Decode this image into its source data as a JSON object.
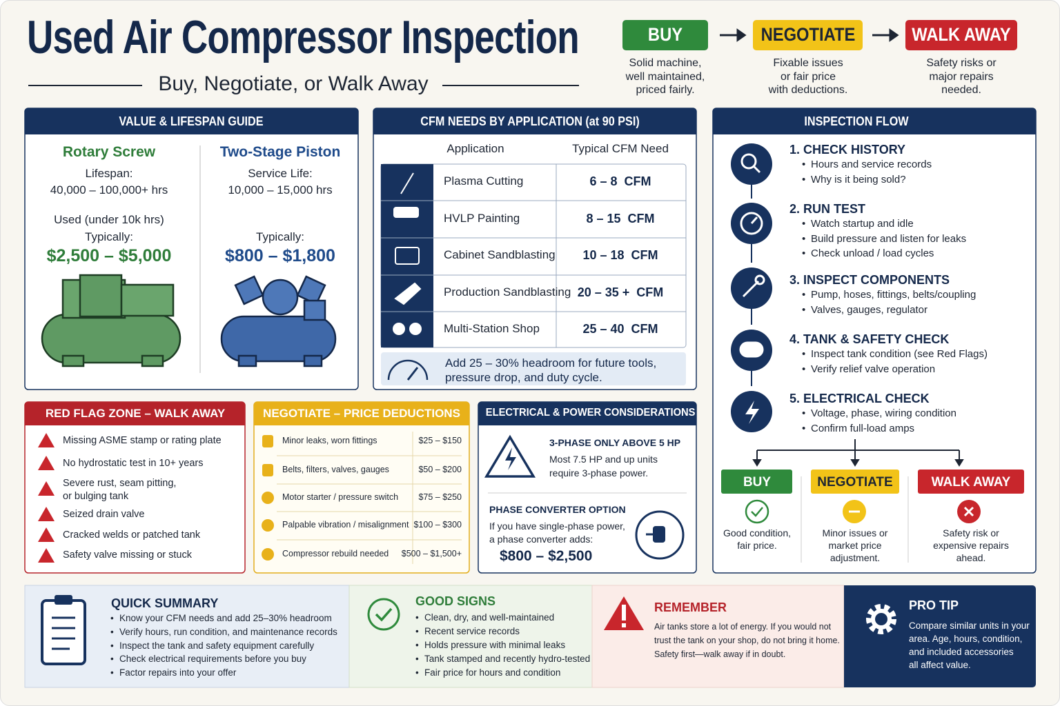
{
  "header": {
    "title": "Used Air Compressor Inspection",
    "subtitle": "Buy, Negotiate, or Walk Away"
  },
  "verdicts": [
    {
      "label": "BUY",
      "lines": [
        "Solid machine,",
        "well maintained,",
        "priced fairly."
      ]
    },
    {
      "label": "NEGOTIATE",
      "lines": [
        "Fixable issues",
        "or fair price",
        "with deductions."
      ]
    },
    {
      "label": "WALK AWAY",
      "lines": [
        "Safety risks or",
        "major repairs",
        "needed."
      ]
    }
  ],
  "value_guide": {
    "title": "VALUE & LIFESPAN GUIDE",
    "columns": [
      {
        "name": "Rotary Screw",
        "life_label": "Lifespan:",
        "life_value": "40,000 – 100,000+ hrs",
        "used": "Used (under 10k hrs)",
        "typical_label": "Typically:",
        "price": "$2,500 – $5,000"
      },
      {
        "name": "Two-Stage Piston",
        "life_label": "Service Life:",
        "life_value": "10,000 – 15,000 hrs",
        "typical_label": "Typically:",
        "price": "$800 – $1,800"
      }
    ]
  },
  "cfm": {
    "title": "CFM NEEDS BY APPLICATION (at 90 PSI)",
    "headers": [
      "Application",
      "Typical CFM Need"
    ],
    "rows": [
      [
        "Plasma Cutting",
        "6 – 8  CFM"
      ],
      [
        "HVLP Painting",
        "8 – 15  CFM"
      ],
      [
        "Cabinet Sandblasting",
        "10 – 18  CFM"
      ],
      [
        "Production Sandblasting",
        "20 – 35 +  CFM"
      ],
      [
        "Multi-Station Shop",
        "25 – 40  CFM"
      ]
    ],
    "note": [
      "Add 25 – 30% headroom for future tools,",
      "pressure drop, and duty cycle."
    ]
  },
  "flow": {
    "title": "INSPECTION FLOW",
    "steps": [
      {
        "title": "1. CHECK HISTORY",
        "bullets": [
          "Hours and service records",
          "Why is it being sold?"
        ]
      },
      {
        "title": "2. RUN TEST",
        "bullets": [
          "Watch startup and idle",
          "Build pressure and listen for leaks",
          "Check unload / load cycles"
        ]
      },
      {
        "title": "3. INSPECT COMPONENTS",
        "bullets": [
          "Pump, hoses, fittings, belts/coupling",
          "Valves, gauges, regulator"
        ]
      },
      {
        "title": "4. TANK & SAFETY CHECK",
        "bullets": [
          "Inspect tank condition (see Red Flags)",
          "Verify relief valve operation"
        ]
      },
      {
        "title": "5. ELECTRICAL CHECK",
        "bullets": [
          "Voltage, phase, wiring condition",
          "Confirm full-load amps"
        ]
      }
    ],
    "outcomes": [
      {
        "label": "BUY",
        "lines": [
          "Good condition,",
          "fair price."
        ]
      },
      {
        "label": "NEGOTIATE",
        "lines": [
          "Minor issues or",
          "market price",
          "adjustment."
        ]
      },
      {
        "label": "WALK AWAY",
        "lines": [
          "Safety risk or",
          "expensive repairs",
          "ahead."
        ]
      }
    ]
  },
  "red_flags": {
    "title": "RED FLAG ZONE – WALK AWAY",
    "items": [
      [
        "Missing ASME stamp or rating plate"
      ],
      [
        "No hydrostatic test in 10+ years"
      ],
      [
        "Severe rust, seam pitting,",
        "or bulging tank"
      ],
      [
        "Seized drain valve"
      ],
      [
        "Cracked welds or patched tank"
      ],
      [
        "Safety valve missing or stuck"
      ]
    ]
  },
  "deductions": {
    "title": "NEGOTIATE – PRICE DEDUCTIONS",
    "rows": [
      [
        "Minor leaks, worn fittings",
        "$25 – $150"
      ],
      [
        "Belts, filters, valves, gauges",
        "$50 – $200"
      ],
      [
        "Motor starter / pressure switch",
        "$75 – $250"
      ],
      [
        "Palpable vibration / misalignment",
        "$100 – $300"
      ],
      [
        "Compressor rebuild needed",
        "$500 – $1,500+"
      ]
    ]
  },
  "electrical": {
    "title": "ELECTRICAL & POWER CONSIDERATIONS",
    "three_phase_title": "3-PHASE ONLY ABOVE 5 HP",
    "three_phase_lines": [
      "Most 7.5 HP and up units",
      "require 3-phase power."
    ],
    "converter_title": "PHASE CONVERTER OPTION",
    "converter_lines": [
      "If you have single-phase power,",
      "a phase converter adds:"
    ],
    "converter_price": "$800 – $2,500"
  },
  "summary": {
    "quick": {
      "title": "QUICK SUMMARY",
      "items": [
        "Know your CFM needs and add 25–30% headroom",
        "Verify hours, run condition, and maintenance records",
        "Inspect the tank and safety equipment carefully",
        "Check electrical requirements before you buy",
        "Factor repairs into your offer"
      ]
    },
    "good": {
      "title": "GOOD SIGNS",
      "items": [
        "Clean, dry, and well-maintained",
        "Recent service records",
        "Holds pressure with minimal leaks",
        "Tank stamped and recently hydro-tested",
        "Fair price for hours and condition"
      ]
    },
    "remember": {
      "title": "REMEMBER",
      "lines": [
        "Air tanks store a lot of energy. If you would not",
        "trust the tank on your shop, do not bring it home.",
        "Safety first—walk away if in doubt."
      ]
    },
    "pro_tip": {
      "title": "PRO TIP",
      "lines": [
        "Compare similar units in your",
        "area. Age, hours, condition,",
        "and included accessories",
        "all affect value."
      ]
    }
  }
}
